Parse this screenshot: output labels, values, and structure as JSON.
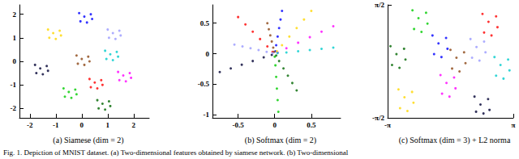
{
  "caption": "Fig. 1. Depiction of MNIST dataset. (a) Two-dimensional features obtained by siamese network. (b) Two-dimensional",
  "chart_data": [
    {
      "type": "scatter",
      "title": "(a) Siamese (dim = 2)",
      "xlim": [
        -2.4,
        2.6
      ],
      "xticks": [
        -2,
        -1,
        0,
        1,
        2
      ],
      "ylim": [
        -2.4,
        2.4
      ],
      "yticks": [
        -2,
        -1,
        0,
        1,
        2
      ],
      "grid": false,
      "series": [
        {
          "color": "#ffd700",
          "values": [
            [
              -1.1,
              1.2
            ],
            [
              -0.85,
              1.3
            ],
            [
              -1.3,
              1.35
            ],
            [
              -1.0,
              0.95
            ],
            [
              -1.25,
              1.0
            ],
            [
              -0.8,
              1.1
            ]
          ]
        },
        {
          "color": "#0000ff",
          "values": [
            [
              0.1,
              1.9
            ],
            [
              0.35,
              2.0
            ],
            [
              -0.1,
              2.05
            ],
            [
              0.2,
              1.65
            ],
            [
              -0.05,
              1.7
            ],
            [
              0.4,
              1.8
            ]
          ]
        },
        {
          "color": "#9999ff",
          "values": [
            [
              1.2,
              1.2
            ],
            [
              1.45,
              1.3
            ],
            [
              1.0,
              1.35
            ],
            [
              1.3,
              0.95
            ],
            [
              1.05,
              1.0
            ],
            [
              1.5,
              1.1
            ]
          ]
        },
        {
          "color": "#000033",
          "values": [
            [
              -1.6,
              -0.3
            ],
            [
              -1.35,
              -0.2
            ],
            [
              -1.8,
              -0.15
            ],
            [
              -1.5,
              -0.55
            ],
            [
              -1.75,
              -0.5
            ],
            [
              -1.3,
              -0.4
            ]
          ]
        },
        {
          "color": "#8b4513",
          "values": [
            [
              0,
              0.1
            ],
            [
              0.25,
              0.2
            ],
            [
              -0.2,
              0.25
            ],
            [
              0.1,
              -0.15
            ],
            [
              -0.15,
              -0.1
            ],
            [
              0.3,
              0
            ]
          ]
        },
        {
          "color": "#00cccc",
          "values": [
            [
              1.1,
              0.3
            ],
            [
              1.35,
              0.4
            ],
            [
              0.9,
              0.45
            ],
            [
              1.2,
              0.05
            ],
            [
              0.95,
              0.1
            ],
            [
              1.4,
              0.2
            ]
          ]
        },
        {
          "color": "#ff00ff",
          "values": [
            [
              1.6,
              -0.6
            ],
            [
              1.85,
              -0.5
            ],
            [
              1.4,
              -0.45
            ],
            [
              1.7,
              -0.85
            ],
            [
              1.45,
              -0.8
            ],
            [
              1.9,
              -0.7
            ]
          ]
        },
        {
          "color": "#006600",
          "values": [
            [
              0.8,
              -1.8
            ],
            [
              1.05,
              -1.7
            ],
            [
              0.6,
              -1.65
            ],
            [
              0.9,
              -2.05
            ],
            [
              0.65,
              -2.0
            ],
            [
              1.1,
              -1.9
            ]
          ]
        },
        {
          "color": "#00cc00",
          "values": [
            [
              -0.5,
              -1.3
            ],
            [
              -0.25,
              -1.2
            ],
            [
              -0.7,
              -1.15
            ],
            [
              -0.4,
              -1.55
            ],
            [
              -0.65,
              -1.5
            ],
            [
              -0.2,
              -1.4
            ]
          ]
        },
        {
          "color": "#ff0000",
          "values": [
            [
              0.5,
              -0.9
            ],
            [
              0.75,
              -0.8
            ],
            [
              0.3,
              -0.75
            ],
            [
              0.6,
              -1.15
            ],
            [
              0.35,
              -1.1
            ],
            [
              0.8,
              -1.0
            ]
          ]
        }
      ]
    },
    {
      "type": "scatter",
      "title": "(b) Softmax (dim = 2)",
      "xlim": [
        -0.85,
        0.9
      ],
      "xticks": [
        -0.5,
        0,
        0.5
      ],
      "ylim": [
        -1.05,
        0.8
      ],
      "yticks": [
        -1,
        -0.5,
        0,
        0.5
      ],
      "grid": false,
      "series": [
        {
          "color": "#ff0000",
          "values": [
            [
              -0.03,
              0.03
            ],
            [
              -0.1,
              0.12
            ],
            [
              -0.2,
              0.24
            ],
            [
              -0.3,
              0.36
            ],
            [
              -0.4,
              0.48
            ],
            [
              -0.5,
              0.6
            ]
          ]
        },
        {
          "color": "#000033",
          "values": [
            [
              -0.04,
              -0.02
            ],
            [
              -0.15,
              -0.06
            ],
            [
              -0.3,
              -0.12
            ],
            [
              -0.45,
              -0.18
            ],
            [
              -0.6,
              -0.24
            ],
            [
              -0.75,
              -0.3
            ]
          ]
        },
        {
          "color": "#0000ff",
          "values": [
            [
              0.01,
              0.04
            ],
            [
              0.02,
              0.14
            ],
            [
              0.04,
              0.28
            ],
            [
              0.06,
              0.42
            ],
            [
              0.08,
              0.56
            ],
            [
              0.1,
              0.7
            ]
          ]
        },
        {
          "color": "#8b4513",
          "values": [
            [
              -0.01,
              0.03
            ],
            [
              -0.02,
              0.1
            ],
            [
              -0.04,
              0.2
            ],
            [
              -0.06,
              0.3
            ],
            [
              -0.08,
              0.4
            ],
            [
              -0.1,
              0.5
            ]
          ]
        },
        {
          "color": "#ff00ff",
          "values": [
            [
              0.04,
              0.02
            ],
            [
              0.16,
              0.09
            ],
            [
              0.32,
              0.18
            ],
            [
              0.48,
              0.27
            ],
            [
              0.64,
              0.36
            ],
            [
              0.8,
              0.45
            ]
          ]
        },
        {
          "color": "#ffd700",
          "values": [
            [
              0.03,
              0.04
            ],
            [
              0.1,
              0.14
            ],
            [
              0.2,
              0.28
            ],
            [
              0.3,
              0.42
            ],
            [
              0.4,
              0.56
            ],
            [
              0.5,
              0.7
            ]
          ]
        },
        {
          "color": "#00cccc",
          "values": [
            [
              0.04,
              0.01
            ],
            [
              0.16,
              0.02
            ],
            [
              0.32,
              0.04
            ],
            [
              0.48,
              0.06
            ],
            [
              0.64,
              0.08
            ],
            [
              0.8,
              0.1
            ]
          ]
        },
        {
          "color": "#00cc00",
          "values": [
            [
              0,
              -0.05
            ],
            [
              0.01,
              -0.19
            ],
            [
              0.02,
              -0.38
            ],
            [
              0.03,
              -0.57
            ],
            [
              0.04,
              -0.76
            ],
            [
              0.05,
              -0.95
            ]
          ]
        },
        {
          "color": "#006600",
          "values": [
            [
              0.02,
              -0.03
            ],
            [
              0.06,
              -0.12
            ],
            [
              0.12,
              -0.24
            ],
            [
              0.18,
              -0.36
            ],
            [
              0.24,
              -0.48
            ],
            [
              0.3,
              -0.6
            ]
          ]
        },
        {
          "color": "#9999ff",
          "values": [
            [
              -0.03,
              0.01
            ],
            [
              -0.11,
              0.03
            ],
            [
              -0.22,
              0.06
            ],
            [
              -0.33,
              0.09
            ],
            [
              -0.44,
              0.12
            ],
            [
              -0.55,
              0.15
            ]
          ]
        }
      ]
    },
    {
      "type": "scatter",
      "title": "(c) Softmax (dim = 3) + L2 norma",
      "xlim": [
        -3.1416,
        3.1416
      ],
      "xticks": [
        {
          "value": -3.1416,
          "label": "-π"
        },
        {
          "value": 3.1416,
          "label": "π"
        }
      ],
      "ylim": [
        -1.5708,
        1.5708
      ],
      "yticks": [
        {
          "value": -1.5708,
          "label": "-π/2"
        },
        {
          "value": 1.5708,
          "label": "π/2"
        }
      ],
      "grid": false,
      "series": [
        {
          "color": "#00cc00",
          "values": [
            [
              -1.6,
              1.2
            ],
            [
              -1.22,
              1.35
            ],
            [
              -1.9,
              1.42
            ],
            [
              -1.45,
              0.82
            ],
            [
              -1.82,
              0.9
            ],
            [
              -1.15,
              1.05
            ]
          ]
        },
        {
          "color": "#ff0000",
          "values": [
            [
              1.9,
              1.1
            ],
            [
              2.28,
              1.25
            ],
            [
              1.6,
              1.32
            ],
            [
              2.05,
              0.72
            ],
            [
              1.68,
              0.8
            ],
            [
              2.35,
              0.95
            ]
          ]
        },
        {
          "color": "#006600",
          "values": [
            [
              -2.7,
              0.2
            ],
            [
              -2.32,
              0.35
            ],
            [
              -3.0,
              0.42
            ],
            [
              -2.55,
              -0.18
            ],
            [
              -2.92,
              -0.1
            ],
            [
              -2.25,
              0.05
            ]
          ]
        },
        {
          "color": "#0000ff",
          "values": [
            [
              -0.6,
              0.5
            ],
            [
              -0.22,
              0.65
            ],
            [
              -0.9,
              0.72
            ],
            [
              -0.45,
              0.12
            ],
            [
              -0.82,
              0.2
            ],
            [
              -0.15,
              0.35
            ]
          ]
        },
        {
          "color": "#8b4513",
          "values": [
            [
              0.3,
              0.1
            ],
            [
              0.68,
              0.25
            ],
            [
              0,
              0.32
            ],
            [
              0.45,
              -0.28
            ],
            [
              0.08,
              -0.2
            ],
            [
              0.75,
              -0.05
            ]
          ]
        },
        {
          "color": "#9999ff",
          "values": [
            [
              1.3,
              0.4
            ],
            [
              1.68,
              0.55
            ],
            [
              1.0,
              0.62
            ],
            [
              1.45,
              0.02
            ],
            [
              1.08,
              0.1
            ],
            [
              1.75,
              0.25
            ]
          ]
        },
        {
          "color": "#00cccc",
          "values": [
            [
              2.5,
              -0.1
            ],
            [
              2.88,
              0.05
            ],
            [
              2.2,
              0.12
            ],
            [
              2.65,
              -0.48
            ],
            [
              2.28,
              -0.4
            ],
            [
              2.95,
              -0.25
            ]
          ]
        },
        {
          "color": "#ff00ff",
          "values": [
            [
              -0.2,
              -0.6
            ],
            [
              0.18,
              -0.45
            ],
            [
              -0.5,
              -0.38
            ],
            [
              -0.05,
              -0.98
            ],
            [
              -0.42,
              -0.9
            ],
            [
              0.25,
              -0.75
            ]
          ]
        },
        {
          "color": "#000033",
          "values": [
            [
              1.5,
              -1.2
            ],
            [
              1.88,
              -1.05
            ],
            [
              1.2,
              -0.98
            ],
            [
              1.65,
              -1.45
            ],
            [
              1.28,
              -1.4
            ],
            [
              1.95,
              -1.35
            ]
          ]
        },
        {
          "color": "#ffd700",
          "values": [
            [
              -2.3,
              -1.0
            ],
            [
              -1.92,
              -0.85
            ],
            [
              -2.6,
              -0.78
            ],
            [
              -2.15,
              -1.38
            ],
            [
              -2.52,
              -1.3
            ],
            [
              -1.85,
              -1.15
            ]
          ]
        }
      ]
    }
  ]
}
